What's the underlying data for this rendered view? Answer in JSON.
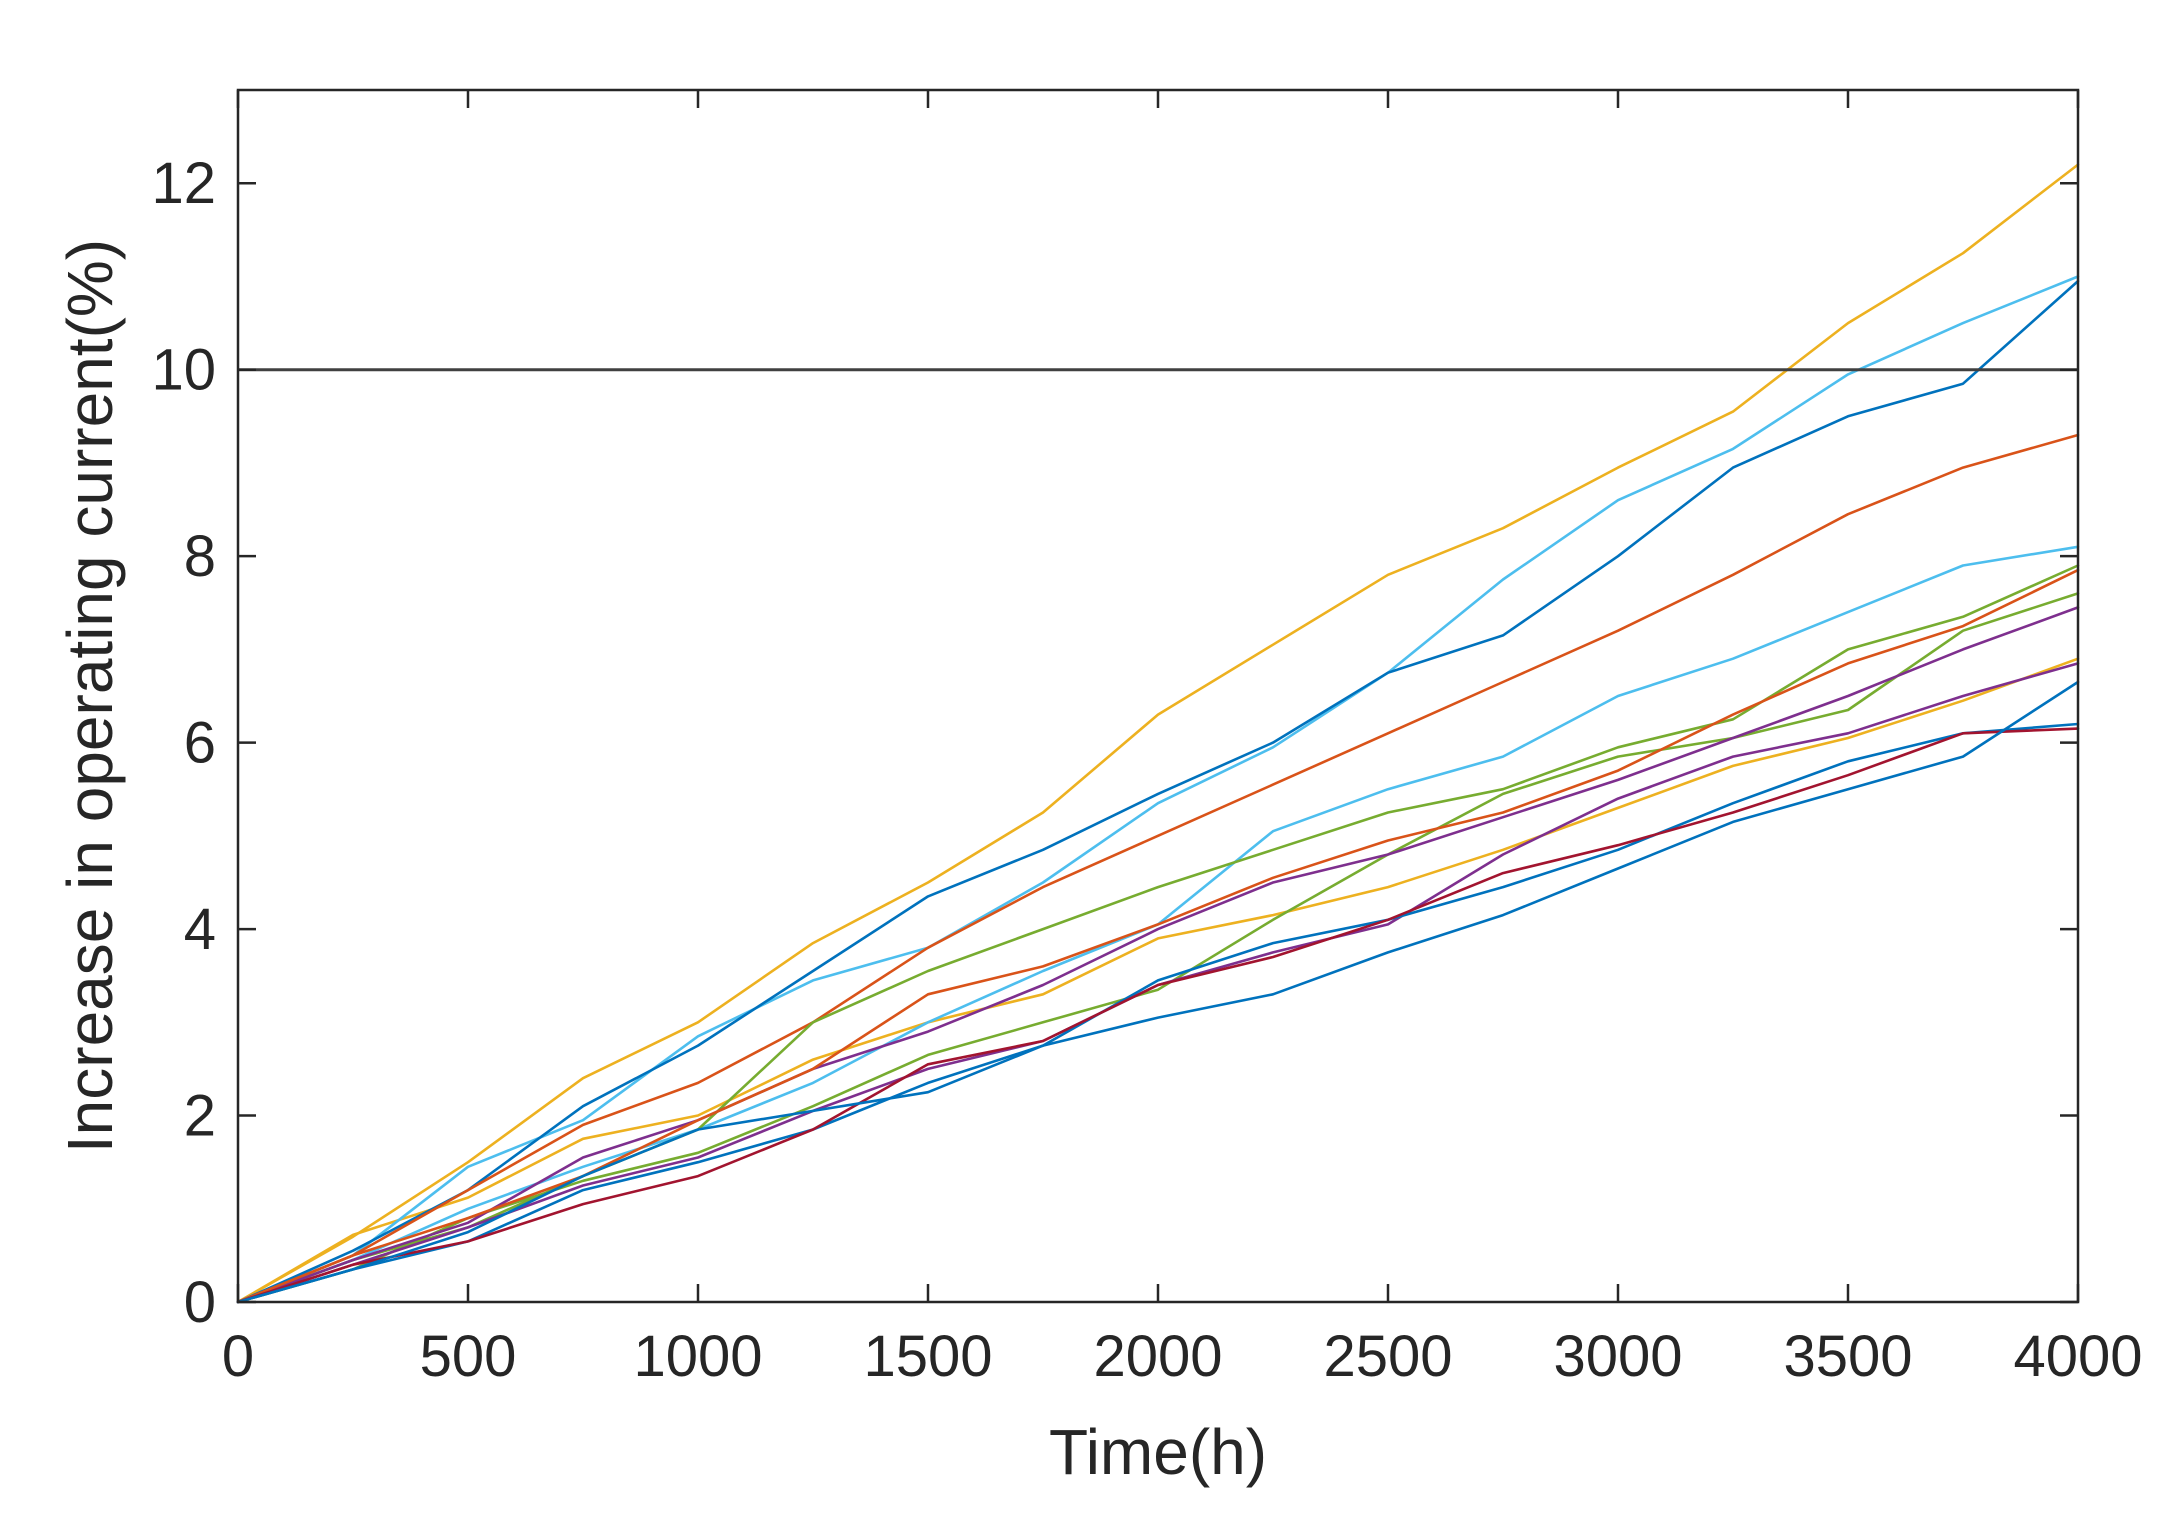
{
  "chart_data": {
    "type": "line",
    "title": "",
    "xlabel": "Time(h)",
    "ylabel": "Increase in operating current(%)",
    "xlim": [
      0,
      4000
    ],
    "ylim": [
      0,
      13
    ],
    "xticks": [
      0,
      500,
      1000,
      1500,
      2000,
      2500,
      3000,
      3500,
      4000
    ],
    "yticks": [
      0,
      2,
      4,
      6,
      8,
      10,
      12
    ],
    "grid": false,
    "legend": "none",
    "threshold": {
      "y": 10,
      "color": "#404040"
    },
    "x": [
      0,
      250,
      500,
      750,
      1000,
      1250,
      1500,
      1750,
      2000,
      2250,
      2500,
      2750,
      3000,
      3250,
      3500,
      3750,
      4000
    ],
    "series": [
      {
        "color": "#EDB120",
        "values": [
          0,
          0.72,
          1.12,
          1.75,
          2.0,
          2.6,
          3.0,
          3.3,
          3.9,
          4.15,
          4.45,
          4.85,
          5.3,
          5.75,
          6.05,
          6.45,
          6.9
        ]
      },
      {
        "color": "#EDB120",
        "values": [
          0,
          0.7,
          1.5,
          2.4,
          3.0,
          3.85,
          4.5,
          5.25,
          6.3,
          7.05,
          7.8,
          8.3,
          8.95,
          9.55,
          10.5,
          11.25,
          12.2
        ]
      },
      {
        "color": "#4DBEEE",
        "values": [
          0,
          0.5,
          1.45,
          1.95,
          2.85,
          3.45,
          3.8,
          4.5,
          5.35,
          5.95,
          6.75,
          7.75,
          8.6,
          9.15,
          9.95,
          10.5,
          11.0
        ]
      },
      {
        "color": "#0072BD",
        "values": [
          0,
          0.55,
          1.2,
          2.1,
          2.75,
          3.55,
          4.35,
          4.85,
          5.45,
          6.0,
          6.75,
          7.15,
          8.0,
          8.95,
          9.5,
          9.85,
          10.95
        ]
      },
      {
        "color": "#D95319",
        "values": [
          0,
          0.5,
          1.2,
          1.9,
          2.35,
          3.0,
          3.8,
          4.45,
          5.0,
          5.55,
          6.1,
          6.65,
          7.2,
          7.8,
          8.45,
          8.95,
          9.3
        ]
      },
      {
        "color": "#4DBEEE",
        "values": [
          0,
          0.45,
          1.0,
          1.45,
          1.85,
          2.35,
          3.0,
          3.55,
          4.05,
          5.05,
          5.5,
          5.85,
          6.5,
          6.9,
          7.4,
          7.9,
          8.1
        ]
      },
      {
        "color": "#77AC30",
        "values": [
          0,
          0.45,
          0.8,
          1.35,
          1.85,
          3.0,
          3.55,
          4.0,
          4.45,
          4.85,
          5.25,
          5.5,
          5.95,
          6.25,
          7.0,
          7.35,
          7.9
        ]
      },
      {
        "color": "#77AC30",
        "values": [
          0,
          0.35,
          0.9,
          1.3,
          1.6,
          2.1,
          2.65,
          3.0,
          3.35,
          4.1,
          4.8,
          5.45,
          5.85,
          6.05,
          6.35,
          7.2,
          7.6
        ]
      },
      {
        "color": "#7E2F8E",
        "values": [
          0,
          0.45,
          0.85,
          1.55,
          1.95,
          2.5,
          2.9,
          3.4,
          4.0,
          4.5,
          4.8,
          5.2,
          5.6,
          6.05,
          6.5,
          7.0,
          7.45
        ]
      },
      {
        "color": "#D95319",
        "values": [
          0,
          0.5,
          0.9,
          1.35,
          1.95,
          2.5,
          3.3,
          3.6,
          4.05,
          4.55,
          4.95,
          5.25,
          5.7,
          6.3,
          6.85,
          7.25,
          7.85
        ]
      },
      {
        "color": "#7E2F8E",
        "values": [
          0,
          0.4,
          0.8,
          1.25,
          1.55,
          2.05,
          2.5,
          2.8,
          3.4,
          3.75,
          4.05,
          4.8,
          5.4,
          5.85,
          6.1,
          6.5,
          6.85
        ]
      },
      {
        "color": "#0072BD",
        "values": [
          0,
          0.35,
          0.65,
          1.2,
          1.5,
          1.85,
          2.35,
          2.75,
          3.45,
          3.85,
          4.1,
          4.45,
          4.85,
          5.35,
          5.8,
          6.1,
          6.2
        ]
      },
      {
        "color": "#A2142F",
        "values": [
          0,
          0.4,
          0.65,
          1.05,
          1.35,
          1.85,
          2.55,
          2.8,
          3.4,
          3.7,
          4.1,
          4.6,
          4.9,
          5.25,
          5.65,
          6.1,
          6.15
        ]
      },
      {
        "color": "#0072BD",
        "values": [
          0,
          0.35,
          0.75,
          1.35,
          1.85,
          2.05,
          2.25,
          2.75,
          3.05,
          3.3,
          3.75,
          4.15,
          4.65,
          5.15,
          5.5,
          5.85,
          6.65
        ]
      }
    ]
  }
}
